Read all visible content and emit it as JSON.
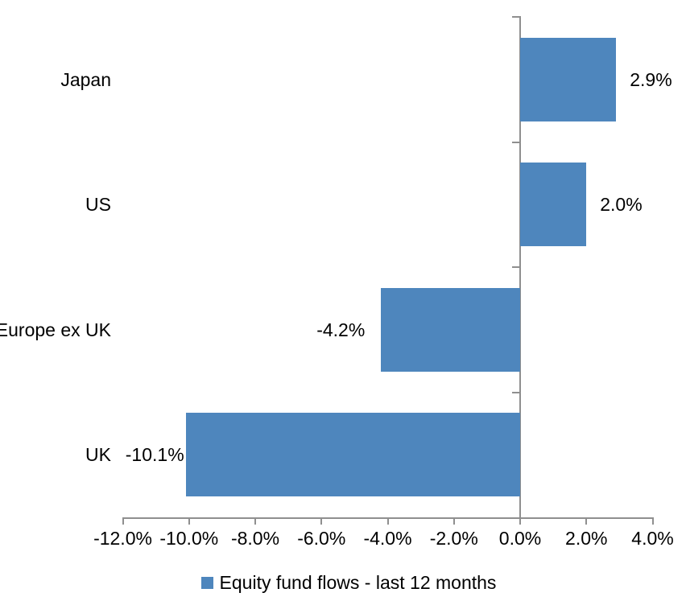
{
  "chart_data": {
    "type": "bar",
    "orientation": "horizontal",
    "title": "",
    "categories": [
      "Japan",
      "US",
      "Europe ex UK",
      "UK"
    ],
    "values": [
      2.9,
      2.0,
      -4.2,
      -10.1
    ],
    "data_labels": [
      "2.9%",
      "2.0%",
      "-4.2%",
      "-10.1%"
    ],
    "x_tick_labels": [
      "-12.0%",
      "-10.0%",
      "-8.0%",
      "-6.0%",
      "-4.0%",
      "-2.0%",
      "0.0%",
      "2.0%",
      "4.0%"
    ],
    "xlim": [
      -12,
      4
    ],
    "x_tick_step": 2,
    "grid": false,
    "legend": {
      "position": "bottom",
      "entries": [
        {
          "label": "Equity fund flows - last 12 months",
          "color": "#4E86BD"
        }
      ]
    },
    "colors": {
      "bar": "#4E86BD",
      "axis": "#8F8F8F",
      "text": "#000000",
      "background": "#FFFFFF"
    }
  }
}
